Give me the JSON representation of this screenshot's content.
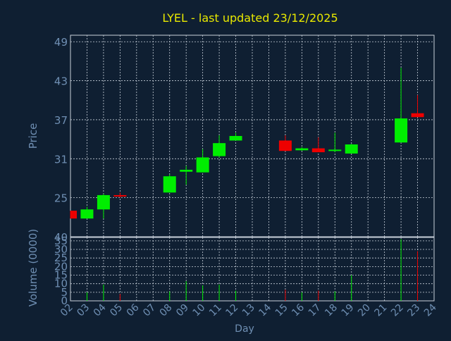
{
  "chart_data": {
    "type": "candlestick",
    "title": "LYEL - last updated 23/12/2025",
    "xlabel": "Day",
    "price_panel": {
      "ylabel": "Price",
      "ylim": [
        19,
        50
      ],
      "yticks": [
        25,
        31,
        37,
        43,
        49
      ],
      "grid": true
    },
    "volume_panel": {
      "ylabel": "Volume (0000)",
      "ylim": [
        0,
        37
      ],
      "yticks": [
        0,
        5,
        10,
        15,
        20,
        25,
        30,
        35
      ],
      "top_label": "40",
      "grid": true
    },
    "x_ticks": [
      "02",
      "03",
      "04",
      "05",
      "06",
      "07",
      "08",
      "09",
      "10",
      "11",
      "12",
      "13",
      "14",
      "15",
      "16",
      "17",
      "18",
      "19",
      "20",
      "21",
      "22",
      "23",
      "24"
    ],
    "candles": [
      {
        "day": "02",
        "open": 23.0,
        "high": 23.0,
        "low": 21.8,
        "close": 21.8,
        "volume": 0.0
      },
      {
        "day": "03",
        "open": 21.8,
        "high": 23.6,
        "low": 21.8,
        "close": 23.2,
        "volume": 5.0
      },
      {
        "day": "04",
        "open": 23.2,
        "high": 25.6,
        "low": 21.8,
        "close": 25.4,
        "volume": 9.5
      },
      {
        "day": "05",
        "open": 25.4,
        "high": 25.8,
        "low": 25.0,
        "close": 25.2,
        "volume": 4.0
      },
      {
        "day": "08",
        "open": 25.8,
        "high": 28.6,
        "low": 25.8,
        "close": 28.3,
        "volume": 5.5
      },
      {
        "day": "09",
        "open": 29.0,
        "high": 29.9,
        "low": 27.0,
        "close": 29.3,
        "volume": 11.5
      },
      {
        "day": "10",
        "open": 28.9,
        "high": 32.5,
        "low": 28.9,
        "close": 31.2,
        "volume": 9.0
      },
      {
        "day": "11",
        "open": 31.4,
        "high": 34.6,
        "low": 31.2,
        "close": 33.4,
        "volume": 9.5
      },
      {
        "day": "12",
        "open": 33.8,
        "high": 35.0,
        "low": 33.8,
        "close": 34.5,
        "volume": 6.0
      },
      {
        "day": "15",
        "open": 33.8,
        "high": 34.6,
        "low": 32.2,
        "close": 32.2,
        "volume": 6.5
      },
      {
        "day": "16",
        "open": 32.3,
        "high": 32.8,
        "low": 32.2,
        "close": 32.6,
        "volume": 5.0
      },
      {
        "day": "17",
        "open": 32.6,
        "high": 34.3,
        "low": 32.0,
        "close": 32.0,
        "volume": 6.0
      },
      {
        "day": "18",
        "open": 32.2,
        "high": 35.0,
        "low": 32.0,
        "close": 32.4,
        "volume": 5.5
      },
      {
        "day": "19",
        "open": 31.8,
        "high": 33.3,
        "low": 31.8,
        "close": 33.2,
        "volume": 15.0
      },
      {
        "day": "22",
        "open": 33.5,
        "high": 45.0,
        "low": 33.5,
        "close": 37.2,
        "volume": 36.0
      },
      {
        "day": "23",
        "open": 38.0,
        "high": 40.8,
        "low": 37.4,
        "close": 37.4,
        "volume": 29.0
      }
    ],
    "colors": {
      "background": "#0f1f32",
      "axis_text": "#6f8fb3",
      "title": "#e8e800",
      "grid": "#c8d0da",
      "up": "#00ee00",
      "down": "#ee0000"
    }
  }
}
